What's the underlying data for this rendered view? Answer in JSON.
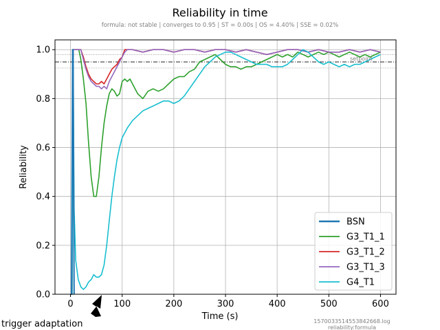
{
  "chart_data": {
    "type": "line",
    "title": "Reliability in time",
    "subtitle": "formula: not stable | converges to 0.95 | ST = 0.00s | OS = 4.40% | SSE = 0.02%",
    "xlabel": "Time (s)",
    "ylabel": "Reliability",
    "xlim": [
      -30,
      630
    ],
    "ylim": [
      0.0,
      1.04
    ],
    "xticks": [
      0,
      100,
      200,
      300,
      400,
      500,
      600
    ],
    "yticks": [
      0.0,
      0.2,
      0.4,
      0.6,
      0.8,
      1.0
    ],
    "xtick_labels": [
      "0",
      "100",
      "200",
      "300",
      "400",
      "500",
      "600"
    ],
    "ytick_labels": [
      "0.0",
      "0.2",
      "0.4",
      "0.6",
      "0.8",
      "1.0"
    ],
    "grid": true,
    "legend_position": "lower-right",
    "setpoint": 0.95,
    "setpoint_label": "setpoint",
    "upper_band": 0.98,
    "lower_band": 0.925,
    "footer_id": "1570033514553842668.log",
    "footer_sub": "reliability:formula",
    "annotation": "trigger adaptation",
    "annotation_x": 55,
    "series": [
      {
        "name": "BSN",
        "color": "#1f77b4",
        "x": [
          2,
          4,
          5,
          7
        ],
        "y": [
          0,
          1.0,
          1.0,
          0
        ]
      },
      {
        "name": "G3_T1_1",
        "color": "#2ca02c",
        "x": [
          0,
          3,
          5,
          8,
          12,
          16,
          20,
          25,
          30,
          35,
          40,
          45,
          50,
          55,
          60,
          65,
          70,
          75,
          80,
          85,
          90,
          95,
          100,
          105,
          110,
          115,
          120,
          130,
          140,
          150,
          160,
          170,
          180,
          190,
          200,
          210,
          220,
          230,
          240,
          250,
          260,
          270,
          280,
          290,
          300,
          310,
          320,
          330,
          340,
          350,
          360,
          370,
          380,
          390,
          400,
          410,
          420,
          430,
          440,
          450,
          460,
          470,
          480,
          490,
          500,
          510,
          520,
          530,
          540,
          550,
          560,
          570,
          580,
          590,
          600
        ],
        "y": [
          0.0,
          0.0,
          1.0,
          1.0,
          1.0,
          1.0,
          0.96,
          0.88,
          0.78,
          0.62,
          0.48,
          0.4,
          0.4,
          0.48,
          0.6,
          0.7,
          0.77,
          0.82,
          0.84,
          0.83,
          0.81,
          0.82,
          0.87,
          0.88,
          0.87,
          0.88,
          0.86,
          0.82,
          0.8,
          0.83,
          0.84,
          0.83,
          0.84,
          0.86,
          0.88,
          0.89,
          0.89,
          0.91,
          0.92,
          0.95,
          0.96,
          0.97,
          0.98,
          0.96,
          0.94,
          0.93,
          0.93,
          0.92,
          0.93,
          0.93,
          0.94,
          0.95,
          0.96,
          0.97,
          0.98,
          0.97,
          0.98,
          0.97,
          0.99,
          0.98,
          0.97,
          0.98,
          0.99,
          0.98,
          0.99,
          0.98,
          0.97,
          0.98,
          0.99,
          0.98,
          0.97,
          0.98,
          0.97,
          0.98,
          0.99
        ]
      },
      {
        "name": "G3_T1_2",
        "color": "#d62728",
        "x": [
          0,
          3,
          5,
          10,
          15,
          20,
          25,
          30,
          35,
          40,
          45,
          50,
          55,
          60,
          65,
          70,
          75,
          80,
          85,
          90,
          95,
          100,
          105,
          110,
          120,
          140,
          160,
          180,
          200,
          220,
          240,
          260,
          280,
          300,
          320,
          340,
          360,
          380,
          400,
          420,
          440,
          460,
          480,
          500,
          520,
          540,
          560,
          580,
          600
        ],
        "y": [
          0.0,
          0.0,
          1.0,
          1.0,
          1.0,
          1.0,
          0.97,
          0.93,
          0.9,
          0.88,
          0.87,
          0.86,
          0.86,
          0.87,
          0.86,
          0.88,
          0.9,
          0.92,
          0.93,
          0.94,
          0.96,
          0.97,
          1.0,
          1.0,
          1.0,
          0.99,
          1.0,
          1.0,
          0.99,
          1.0,
          1.0,
          0.99,
          1.0,
          1.0,
          0.99,
          1.0,
          0.99,
          0.98,
          0.99,
          1.0,
          1.0,
          0.99,
          1.0,
          0.99,
          0.99,
          1.0,
          0.99,
          1.0,
          0.99
        ]
      },
      {
        "name": "G3_T1_3",
        "color": "#9467bd",
        "x": [
          0,
          3,
          5,
          10,
          15,
          20,
          25,
          30,
          35,
          40,
          45,
          50,
          55,
          60,
          65,
          70,
          75,
          80,
          85,
          90,
          95,
          100,
          105,
          110,
          120,
          140,
          160,
          180,
          200,
          220,
          240,
          260,
          280,
          300,
          320,
          340,
          360,
          380,
          400,
          420,
          440,
          460,
          480,
          500,
          520,
          540,
          560,
          580,
          600
        ],
        "y": [
          0.0,
          0.0,
          1.0,
          1.0,
          1.0,
          1.0,
          0.96,
          0.92,
          0.89,
          0.87,
          0.86,
          0.85,
          0.85,
          0.84,
          0.85,
          0.84,
          0.87,
          0.89,
          0.91,
          0.93,
          0.95,
          0.97,
          0.99,
          1.0,
          1.0,
          0.99,
          1.0,
          1.0,
          0.99,
          1.0,
          1.0,
          0.99,
          1.0,
          1.0,
          0.99,
          1.0,
          0.99,
          0.98,
          0.99,
          1.0,
          1.0,
          0.99,
          1.0,
          0.99,
          0.99,
          1.0,
          0.99,
          1.0,
          0.99
        ]
      },
      {
        "name": "G4_T1",
        "color": "#17becf",
        "x": [
          0,
          3,
          5,
          7,
          10,
          15,
          20,
          25,
          30,
          35,
          40,
          45,
          50,
          55,
          60,
          65,
          70,
          75,
          80,
          85,
          90,
          95,
          100,
          110,
          120,
          130,
          140,
          150,
          160,
          170,
          180,
          190,
          200,
          210,
          220,
          230,
          240,
          250,
          260,
          270,
          280,
          290,
          300,
          310,
          320,
          330,
          340,
          350,
          360,
          370,
          380,
          390,
          400,
          410,
          420,
          430,
          440,
          450,
          460,
          470,
          480,
          490,
          500,
          510,
          520,
          530,
          540,
          550,
          560,
          570,
          580,
          590,
          600
        ],
        "y": [
          0.0,
          0.0,
          1.0,
          0.35,
          0.14,
          0.06,
          0.03,
          0.02,
          0.03,
          0.05,
          0.06,
          0.08,
          0.07,
          0.07,
          0.08,
          0.12,
          0.2,
          0.3,
          0.4,
          0.48,
          0.55,
          0.6,
          0.64,
          0.68,
          0.71,
          0.73,
          0.75,
          0.76,
          0.77,
          0.78,
          0.79,
          0.79,
          0.78,
          0.79,
          0.81,
          0.84,
          0.87,
          0.9,
          0.93,
          0.95,
          0.97,
          0.98,
          0.99,
          0.99,
          0.98,
          0.97,
          0.96,
          0.95,
          0.94,
          0.94,
          0.94,
          0.93,
          0.93,
          0.93,
          0.94,
          0.96,
          0.98,
          1.0,
          0.99,
          0.97,
          0.95,
          0.94,
          0.95,
          0.94,
          0.93,
          0.94,
          0.93,
          0.94,
          0.94,
          0.95,
          0.96,
          0.97,
          0.98
        ]
      }
    ]
  }
}
